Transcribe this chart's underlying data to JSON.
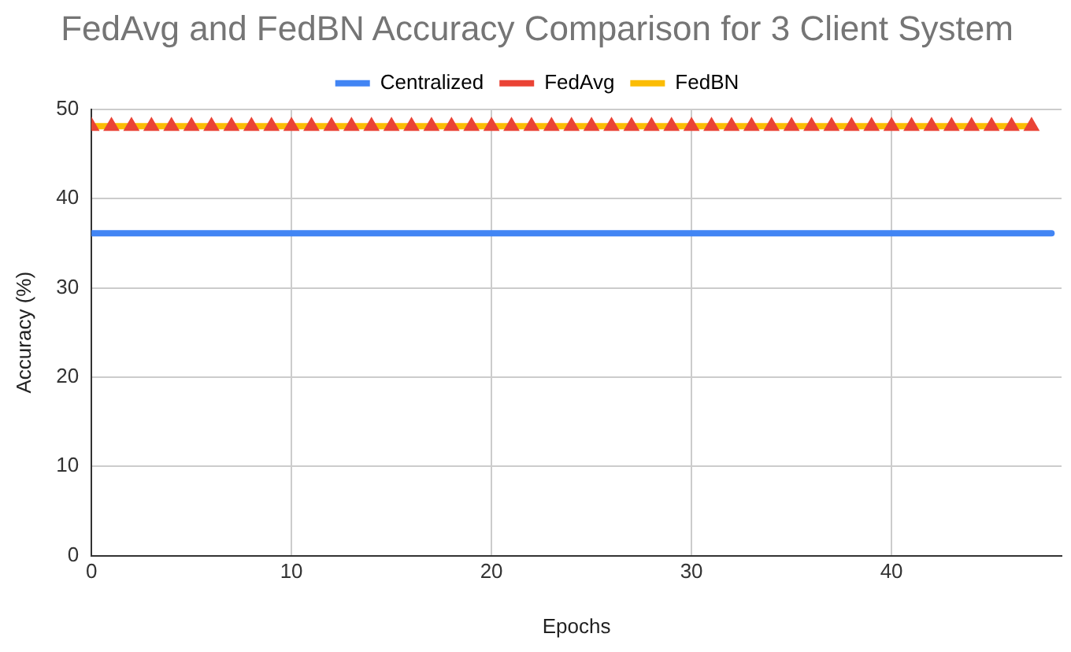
{
  "chart_data": {
    "type": "line",
    "title": "FedAvg and FedBN Accuracy Comparison for 3 Client System",
    "xlabel": "Epochs",
    "ylabel": "Accuracy (%)",
    "xlim": [
      0,
      48.5
    ],
    "xticks": [
      0,
      10,
      20,
      30,
      40
    ],
    "ylim": [
      0,
      50
    ],
    "yticks": [
      0,
      10,
      20,
      30,
      40,
      50
    ],
    "grid": true,
    "legend": "top",
    "marker": "none",
    "series": [
      {
        "name": "Centralized",
        "color": "#4285f4",
        "x": [
          0,
          1,
          2,
          3,
          4,
          5,
          6,
          7,
          8,
          9,
          10,
          11,
          12,
          13,
          14,
          15,
          16,
          17,
          18,
          19,
          20,
          21,
          22,
          23,
          24,
          25,
          26,
          27,
          28,
          29,
          30,
          31,
          32,
          33,
          34,
          35,
          36,
          37,
          38,
          39,
          40,
          41,
          42,
          43,
          44,
          45,
          46,
          47,
          48
        ],
        "values": [
          36.1,
          36.1,
          36.1,
          36.1,
          36.1,
          36.1,
          36.1,
          36.1,
          36.1,
          36.1,
          36.1,
          36.1,
          36.1,
          36.1,
          36.1,
          36.1,
          36.1,
          36.1,
          36.1,
          36.1,
          36.1,
          36.1,
          36.1,
          36.1,
          36.1,
          36.1,
          36.1,
          36.1,
          36.1,
          36.1,
          36.1,
          36.1,
          36.1,
          36.1,
          36.1,
          36.1,
          36.1,
          36.1,
          36.1,
          36.1,
          36.1,
          36.1,
          36.1,
          36.1,
          36.1,
          36.1,
          36.1,
          36.1,
          36.1
        ]
      },
      {
        "name": "FedAvg",
        "type": "scatter",
        "marker": "triangle",
        "color": "#ea4335",
        "x": [
          0,
          1,
          2,
          3,
          4,
          5,
          6,
          7,
          8,
          9,
          10,
          11,
          12,
          13,
          14,
          15,
          16,
          17,
          18,
          19,
          20,
          21,
          22,
          23,
          24,
          25,
          26,
          27,
          28,
          29,
          30,
          31,
          32,
          33,
          34,
          35,
          36,
          37,
          38,
          39,
          40,
          41,
          42,
          43,
          44,
          45,
          46,
          47
        ],
        "values": [
          48.1,
          48.1,
          48.1,
          48.1,
          48.1,
          48.1,
          48.1,
          48.1,
          48.1,
          48.1,
          48.1,
          48.1,
          48.1,
          48.1,
          48.1,
          48.1,
          48.1,
          48.1,
          48.1,
          48.1,
          48.1,
          48.1,
          48.1,
          48.1,
          48.1,
          48.1,
          48.1,
          48.1,
          48.1,
          48.1,
          48.1,
          48.1,
          48.1,
          48.1,
          48.1,
          48.1,
          48.1,
          48.1,
          48.1,
          48.1,
          48.1,
          48.1,
          48.1,
          48.1,
          48.1,
          48.1,
          48.1,
          48.1
        ]
      },
      {
        "name": "FedBN",
        "color": "#fbbc04",
        "x": [
          0,
          1,
          2,
          3,
          4,
          5,
          6,
          7,
          8,
          9,
          10,
          11,
          12,
          13,
          14,
          15,
          16,
          17,
          18,
          19,
          20,
          21,
          22,
          23,
          24,
          25,
          26,
          27,
          28,
          29,
          30,
          31,
          32,
          33,
          34,
          35,
          36,
          37,
          38,
          39,
          40,
          41,
          42,
          43,
          44,
          45,
          46,
          47
        ],
        "values": [
          48.1,
          48.1,
          48.1,
          48.1,
          48.1,
          48.1,
          48.1,
          48.1,
          48.1,
          48.1,
          48.1,
          48.1,
          48.1,
          48.1,
          48.1,
          48.1,
          48.1,
          48.1,
          48.1,
          48.1,
          48.1,
          48.1,
          48.1,
          48.1,
          48.1,
          48.1,
          48.1,
          48.1,
          48.1,
          48.1,
          48.1,
          48.1,
          48.1,
          48.1,
          48.1,
          48.1,
          48.1,
          48.1,
          48.1,
          48.1,
          48.1,
          48.1,
          48.1,
          48.1,
          48.1,
          48.1,
          48.1,
          48.1
        ]
      }
    ]
  }
}
